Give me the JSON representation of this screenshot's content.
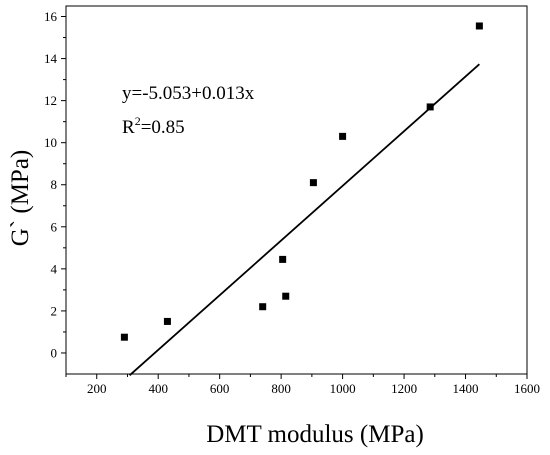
{
  "chart_data": {
    "type": "scatter",
    "xlabel": "DMT modulus (MPa)",
    "ylabel": "G` (MPa)",
    "xlim": [
      100,
      1600
    ],
    "ylim": [
      -1,
      16.5
    ],
    "xticks": [
      200,
      400,
      600,
      800,
      1000,
      1200,
      1400,
      1600
    ],
    "yticks": [
      0,
      2,
      4,
      6,
      8,
      10,
      12,
      14,
      16
    ],
    "grid": false,
    "legend": "none",
    "series": [
      {
        "marker": "square",
        "color": "#000000",
        "points": [
          {
            "x": 290,
            "y": 0.75
          },
          {
            "x": 430,
            "y": 1.5
          },
          {
            "x": 740,
            "y": 2.2
          },
          {
            "x": 805,
            "y": 4.45
          },
          {
            "x": 815,
            "y": 2.7
          },
          {
            "x": 905,
            "y": 8.1
          },
          {
            "x": 1000,
            "y": 10.3
          },
          {
            "x": 1285,
            "y": 11.7
          },
          {
            "x": 1445,
            "y": 15.55
          }
        ]
      }
    ],
    "fit_line": {
      "intercept": -5.053,
      "slope": 0.013,
      "x_range": [
        307,
        1445
      ]
    },
    "annotations": {
      "equation": "y=-5.053+0.013x",
      "r2_label": "R",
      "r2_exponent": "2",
      "r2_value": "=0.85"
    }
  }
}
